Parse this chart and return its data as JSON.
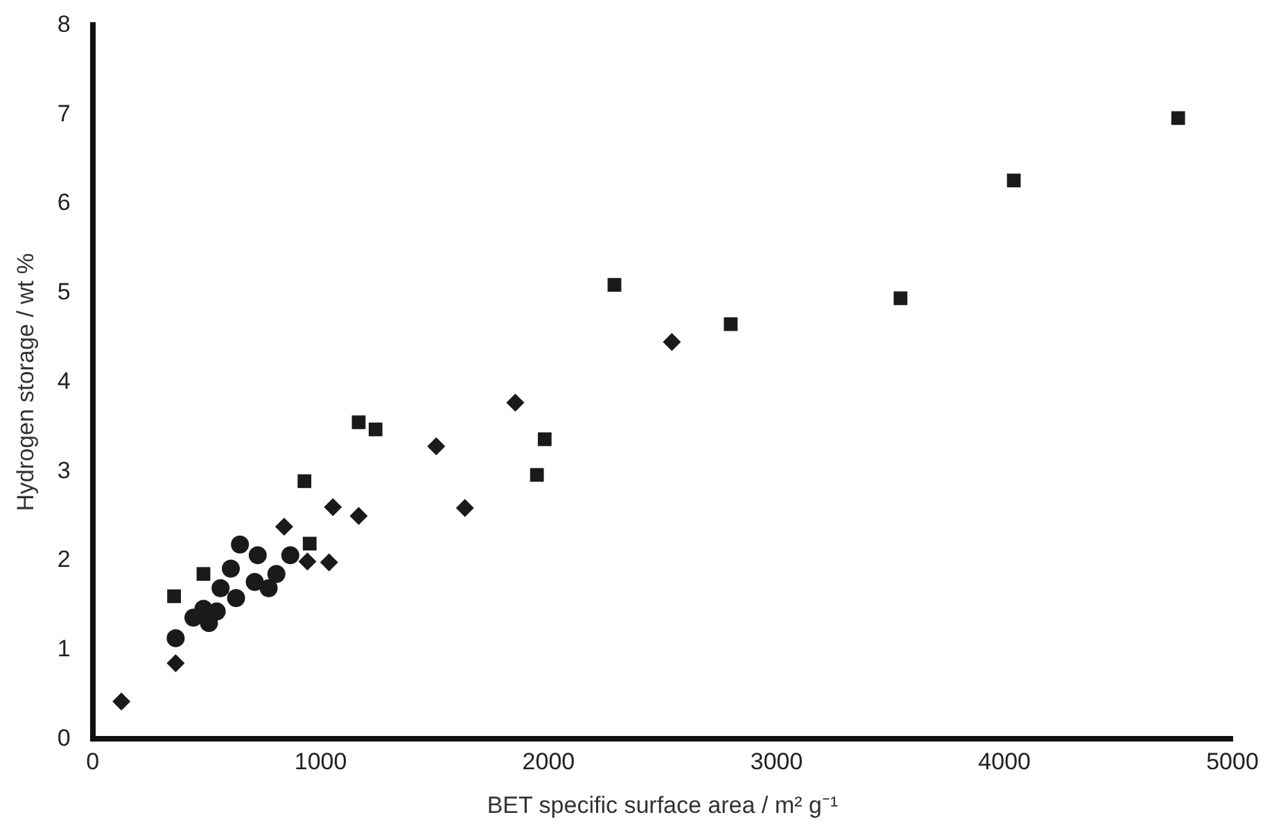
{
  "chart_data": {
    "type": "scatter",
    "xlabel": "BET specific surface area / m² g⁻¹",
    "ylabel": "Hydrogen storage / wt %",
    "xlim": [
      0,
      5000
    ],
    "xticks": [
      0,
      1000,
      2000,
      3000,
      4000,
      5000
    ],
    "ylim": [
      0,
      8
    ],
    "yticks": [
      0,
      1,
      2,
      3,
      4,
      5,
      6,
      7,
      8
    ],
    "grid": false,
    "legend": false,
    "series": [
      {
        "color": "#1a1a1a",
        "marker": "square",
        "x": [
          357,
          486,
          929,
          952,
          1167,
          1241,
          1949,
          1983,
          2289,
          2799,
          3544,
          4041,
          4762
        ],
        "values": [
          1.6,
          1.85,
          2.89,
          2.19,
          3.55,
          3.47,
          2.96,
          3.36,
          5.09,
          4.65,
          4.94,
          6.26,
          6.96
        ]
      },
      {
        "color": "#1a1a1a",
        "marker": "diamond",
        "x": [
          126,
          364,
          840,
          942,
          1037,
          1054,
          1167,
          1507,
          1633,
          1854,
          2541
        ],
        "values": [
          0.42,
          0.85,
          2.38,
          1.99,
          1.98,
          2.6,
          2.5,
          3.28,
          2.59,
          3.77,
          4.45
        ]
      },
      {
        "color": "#1a1a1a",
        "marker": "circle",
        "x": [
          364,
          442,
          486,
          510,
          544,
          561,
          606,
          629,
          646,
          711,
          724,
          772,
          806,
          867
        ],
        "values": [
          1.13,
          1.36,
          1.46,
          1.3,
          1.43,
          1.69,
          1.91,
          1.58,
          2.18,
          1.76,
          2.06,
          1.69,
          1.85,
          2.06
        ]
      }
    ]
  }
}
